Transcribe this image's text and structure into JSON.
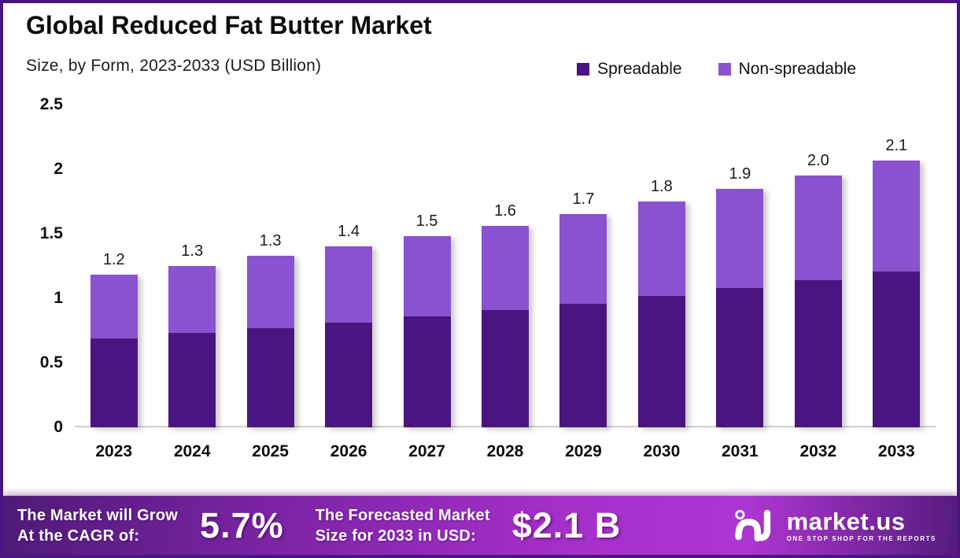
{
  "header": {
    "title": "Global Reduced Fat Butter Market",
    "subtitle": "Size, by Form, 2023-2033 (USD Billion)"
  },
  "legend": [
    {
      "label": "Spreadable",
      "color": "#4a1581"
    },
    {
      "label": "Non-spreadable",
      "color": "#8b52cf"
    }
  ],
  "chart_data": {
    "type": "bar",
    "stacked": true,
    "title": "Global Reduced Fat Butter Market Size, by Form, 2023-2033 (USD Billion)",
    "categories": [
      "2023",
      "2024",
      "2025",
      "2026",
      "2027",
      "2028",
      "2029",
      "2030",
      "2031",
      "2032",
      "2033"
    ],
    "series": [
      {
        "name": "Spreadable",
        "color": "#4a1581",
        "values": [
          0.69,
          0.73,
          0.77,
          0.81,
          0.86,
          0.91,
          0.96,
          1.02,
          1.08,
          1.14,
          1.21
        ]
      },
      {
        "name": "Non-spreadable",
        "color": "#8b52cf",
        "values": [
          0.49,
          0.52,
          0.56,
          0.59,
          0.62,
          0.65,
          0.69,
          0.73,
          0.77,
          0.81,
          0.86
        ]
      }
    ],
    "totals": [
      1.18,
      1.25,
      1.33,
      1.4,
      1.48,
      1.56,
      1.65,
      1.75,
      1.85,
      1.95,
      2.07
    ],
    "total_labels": [
      "1.2",
      "1.3",
      "1.3",
      "1.4",
      "1.5",
      "1.6",
      "1.7",
      "1.8",
      "1.9",
      "2.0",
      "2.1"
    ],
    "xlabel": "",
    "ylabel": "",
    "ylim": [
      0,
      2.5
    ],
    "yticks": [
      "2.5",
      "2",
      "1.5",
      "1",
      "0.5",
      "0"
    ],
    "grid": false,
    "legend_position": "top-right"
  },
  "footer": {
    "cagr_label_line1": "The Market will Grow",
    "cagr_label_line2": "At the CAGR of:",
    "cagr_value": "5.7%",
    "forecast_label_line1": "The Forecasted Market",
    "forecast_label_line2": "Size for 2033 in USD:",
    "forecast_value": "$2.1 B",
    "brand_name": "market.us",
    "brand_tagline": "ONE STOP SHOP FOR THE REPORTS"
  },
  "colors": {
    "frame_border": "#4a1580",
    "spreadable": "#4a1581",
    "non_spreadable": "#8b52cf",
    "axis_line": "#cfcfcf",
    "banner_left": "#4f1a78",
    "banner_mid": "#a52fc9",
    "banner_right": "#561c7e"
  }
}
